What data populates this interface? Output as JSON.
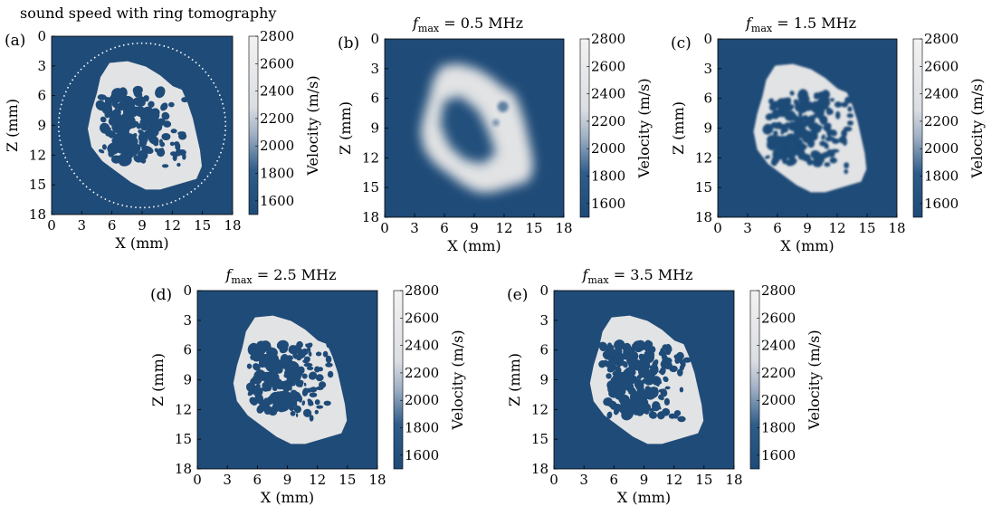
{
  "figure": {
    "description_text": "sound speed with ring tomography"
  },
  "chart_data": [
    {
      "type": "heatmap",
      "panel": "(a)",
      "title": "",
      "xlabel": "X (mm)",
      "ylabel": "Z (mm)",
      "xticks": [
        0,
        3,
        6,
        9,
        12,
        15,
        18
      ],
      "yticks": [
        0,
        3,
        6,
        9,
        12,
        15,
        18
      ],
      "xlim": [
        0,
        18
      ],
      "ylim": [
        0,
        18
      ],
      "colorbar": {
        "label": "Velocity (m/s)",
        "ticks": [
          1600,
          1800,
          2000,
          2200,
          2400,
          2600,
          2800
        ],
        "range": [
          1500,
          2800
        ]
      },
      "ring_overlay": {
        "center_mm": [
          9,
          9
        ],
        "radius_mm": 8.3,
        "style": "dotted"
      },
      "variant": "truth"
    },
    {
      "type": "heatmap",
      "panel": "(b)",
      "title": "f_max = 0.5 MHz",
      "title_prefix": "f",
      "title_sub": "max",
      "title_value": "= 0.5 MHz",
      "xlabel": "X (mm)",
      "ylabel": "Z (mm)",
      "xticks": [
        0,
        3,
        6,
        9,
        12,
        15,
        18
      ],
      "yticks": [
        0,
        3,
        6,
        9,
        12,
        15,
        18
      ],
      "xlim": [
        0,
        18
      ],
      "ylim": [
        0,
        18
      ],
      "colorbar": {
        "label": "Velocity (m/s)",
        "ticks": [
          1600,
          1800,
          2000,
          2200,
          2400,
          2600,
          2800
        ],
        "range": [
          1500,
          2800
        ]
      },
      "variant": "smooth"
    },
    {
      "type": "heatmap",
      "panel": "(c)",
      "title": "f_max = 1.5 MHz",
      "title_prefix": "f",
      "title_sub": "max",
      "title_value": "= 1.5 MHz",
      "xlabel": "X (mm)",
      "ylabel": "Z (mm)",
      "xticks": [
        0,
        3,
        6,
        9,
        12,
        15,
        18
      ],
      "yticks": [
        0,
        3,
        6,
        9,
        12,
        15,
        18
      ],
      "xlim": [
        0,
        18
      ],
      "ylim": [
        0,
        18
      ],
      "colorbar": {
        "label": "Velocity (m/s)",
        "ticks": [
          1600,
          1800,
          2000,
          2200,
          2400,
          2600,
          2800
        ],
        "range": [
          1500,
          2800
        ]
      },
      "variant": "medium"
    },
    {
      "type": "heatmap",
      "panel": "(d)",
      "title": "f_max = 2.5 MHz",
      "title_prefix": "f",
      "title_sub": "max",
      "title_value": "= 2.5 MHz",
      "xlabel": "X (mm)",
      "ylabel": "Z (mm)",
      "xticks": [
        0,
        3,
        6,
        9,
        12,
        15,
        18
      ],
      "yticks": [
        0,
        3,
        6,
        9,
        12,
        15,
        18
      ],
      "xlim": [
        0,
        18
      ],
      "ylim": [
        0,
        18
      ],
      "colorbar": {
        "label": "Velocity (m/s)",
        "ticks": [
          1600,
          1800,
          2000,
          2200,
          2400,
          2600,
          2800
        ],
        "range": [
          1500,
          2800
        ]
      },
      "variant": "sharp"
    },
    {
      "type": "heatmap",
      "panel": "(e)",
      "title": "f_max = 3.5 MHz",
      "title_prefix": "f",
      "title_sub": "max",
      "title_value": "= 3.5 MHz",
      "xlabel": "X (mm)",
      "ylabel": "Z (mm)",
      "xticks": [
        0,
        3,
        6,
        9,
        12,
        15,
        18
      ],
      "yticks": [
        0,
        3,
        6,
        9,
        12,
        15,
        18
      ],
      "xlim": [
        0,
        18
      ],
      "ylim": [
        0,
        18
      ],
      "colorbar": {
        "label": "Velocity (m/s)",
        "ticks": [
          1600,
          1800,
          2000,
          2200,
          2400,
          2600,
          2800
        ],
        "range": [
          1500,
          2800
        ]
      },
      "variant": "sharp"
    }
  ],
  "colors": {
    "background_medium": "#1f4b78",
    "bone": "#e2e3e4",
    "colorbar_low": "#1d4a77",
    "colorbar_high": "#f2f2f2",
    "ring": "#ffffff"
  }
}
